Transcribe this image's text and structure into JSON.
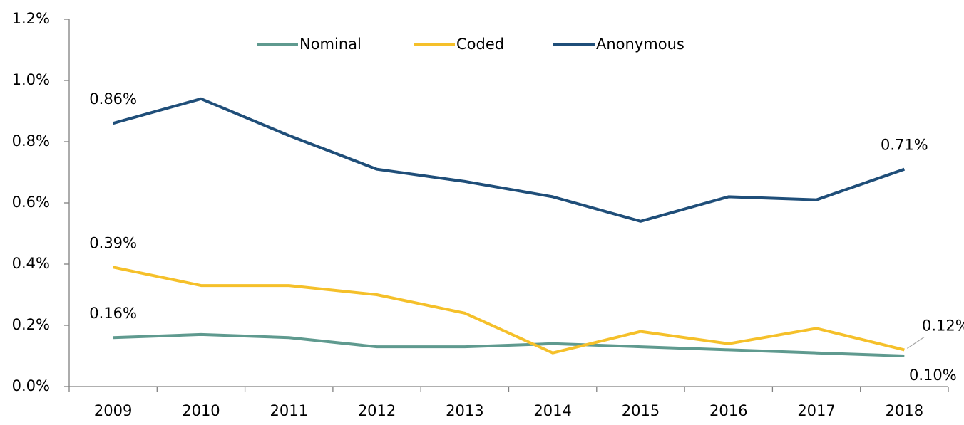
{
  "chart_data": {
    "type": "line",
    "categories": [
      "2009",
      "2010",
      "2011",
      "2012",
      "2013",
      "2014",
      "2015",
      "2016",
      "2017",
      "2018"
    ],
    "series": [
      {
        "name": "Nominal",
        "color": "#5f9a8f",
        "values": [
          0.16,
          0.17,
          0.16,
          0.13,
          0.13,
          0.14,
          0.13,
          0.12,
          0.11,
          0.1
        ],
        "value_labels": [
          "0.16%",
          null,
          null,
          null,
          null,
          null,
          null,
          null,
          null,
          "0.10%"
        ]
      },
      {
        "name": "Coded",
        "color": "#f5c02a",
        "values": [
          0.39,
          0.33,
          0.33,
          0.3,
          0.24,
          0.11,
          0.18,
          0.14,
          0.19,
          0.12
        ],
        "value_labels": [
          "0.39%",
          null,
          null,
          null,
          null,
          null,
          null,
          null,
          null,
          "0.12%"
        ]
      },
      {
        "name": "Anonymous",
        "color": "#1f4e79",
        "values": [
          0.86,
          0.94,
          0.82,
          0.71,
          0.67,
          0.62,
          0.54,
          0.62,
          0.61,
          0.71
        ],
        "value_labels": [
          "0.86%",
          null,
          null,
          null,
          null,
          null,
          null,
          null,
          null,
          "0.71%"
        ]
      }
    ],
    "ylim": [
      0,
      1.2
    ],
    "yticks": [
      {
        "value": 0,
        "label": "0.0%"
      },
      {
        "value": 0.2,
        "label": "0.2%"
      },
      {
        "value": 0.4,
        "label": "0.4%"
      },
      {
        "value": 0.6,
        "label": "0.6%"
      },
      {
        "value": 0.8,
        "label": "0.8%"
      },
      {
        "value": 1.0,
        "label": "1.0%"
      },
      {
        "value": 1.2,
        "label": "1.2%"
      }
    ],
    "legend": "top"
  }
}
